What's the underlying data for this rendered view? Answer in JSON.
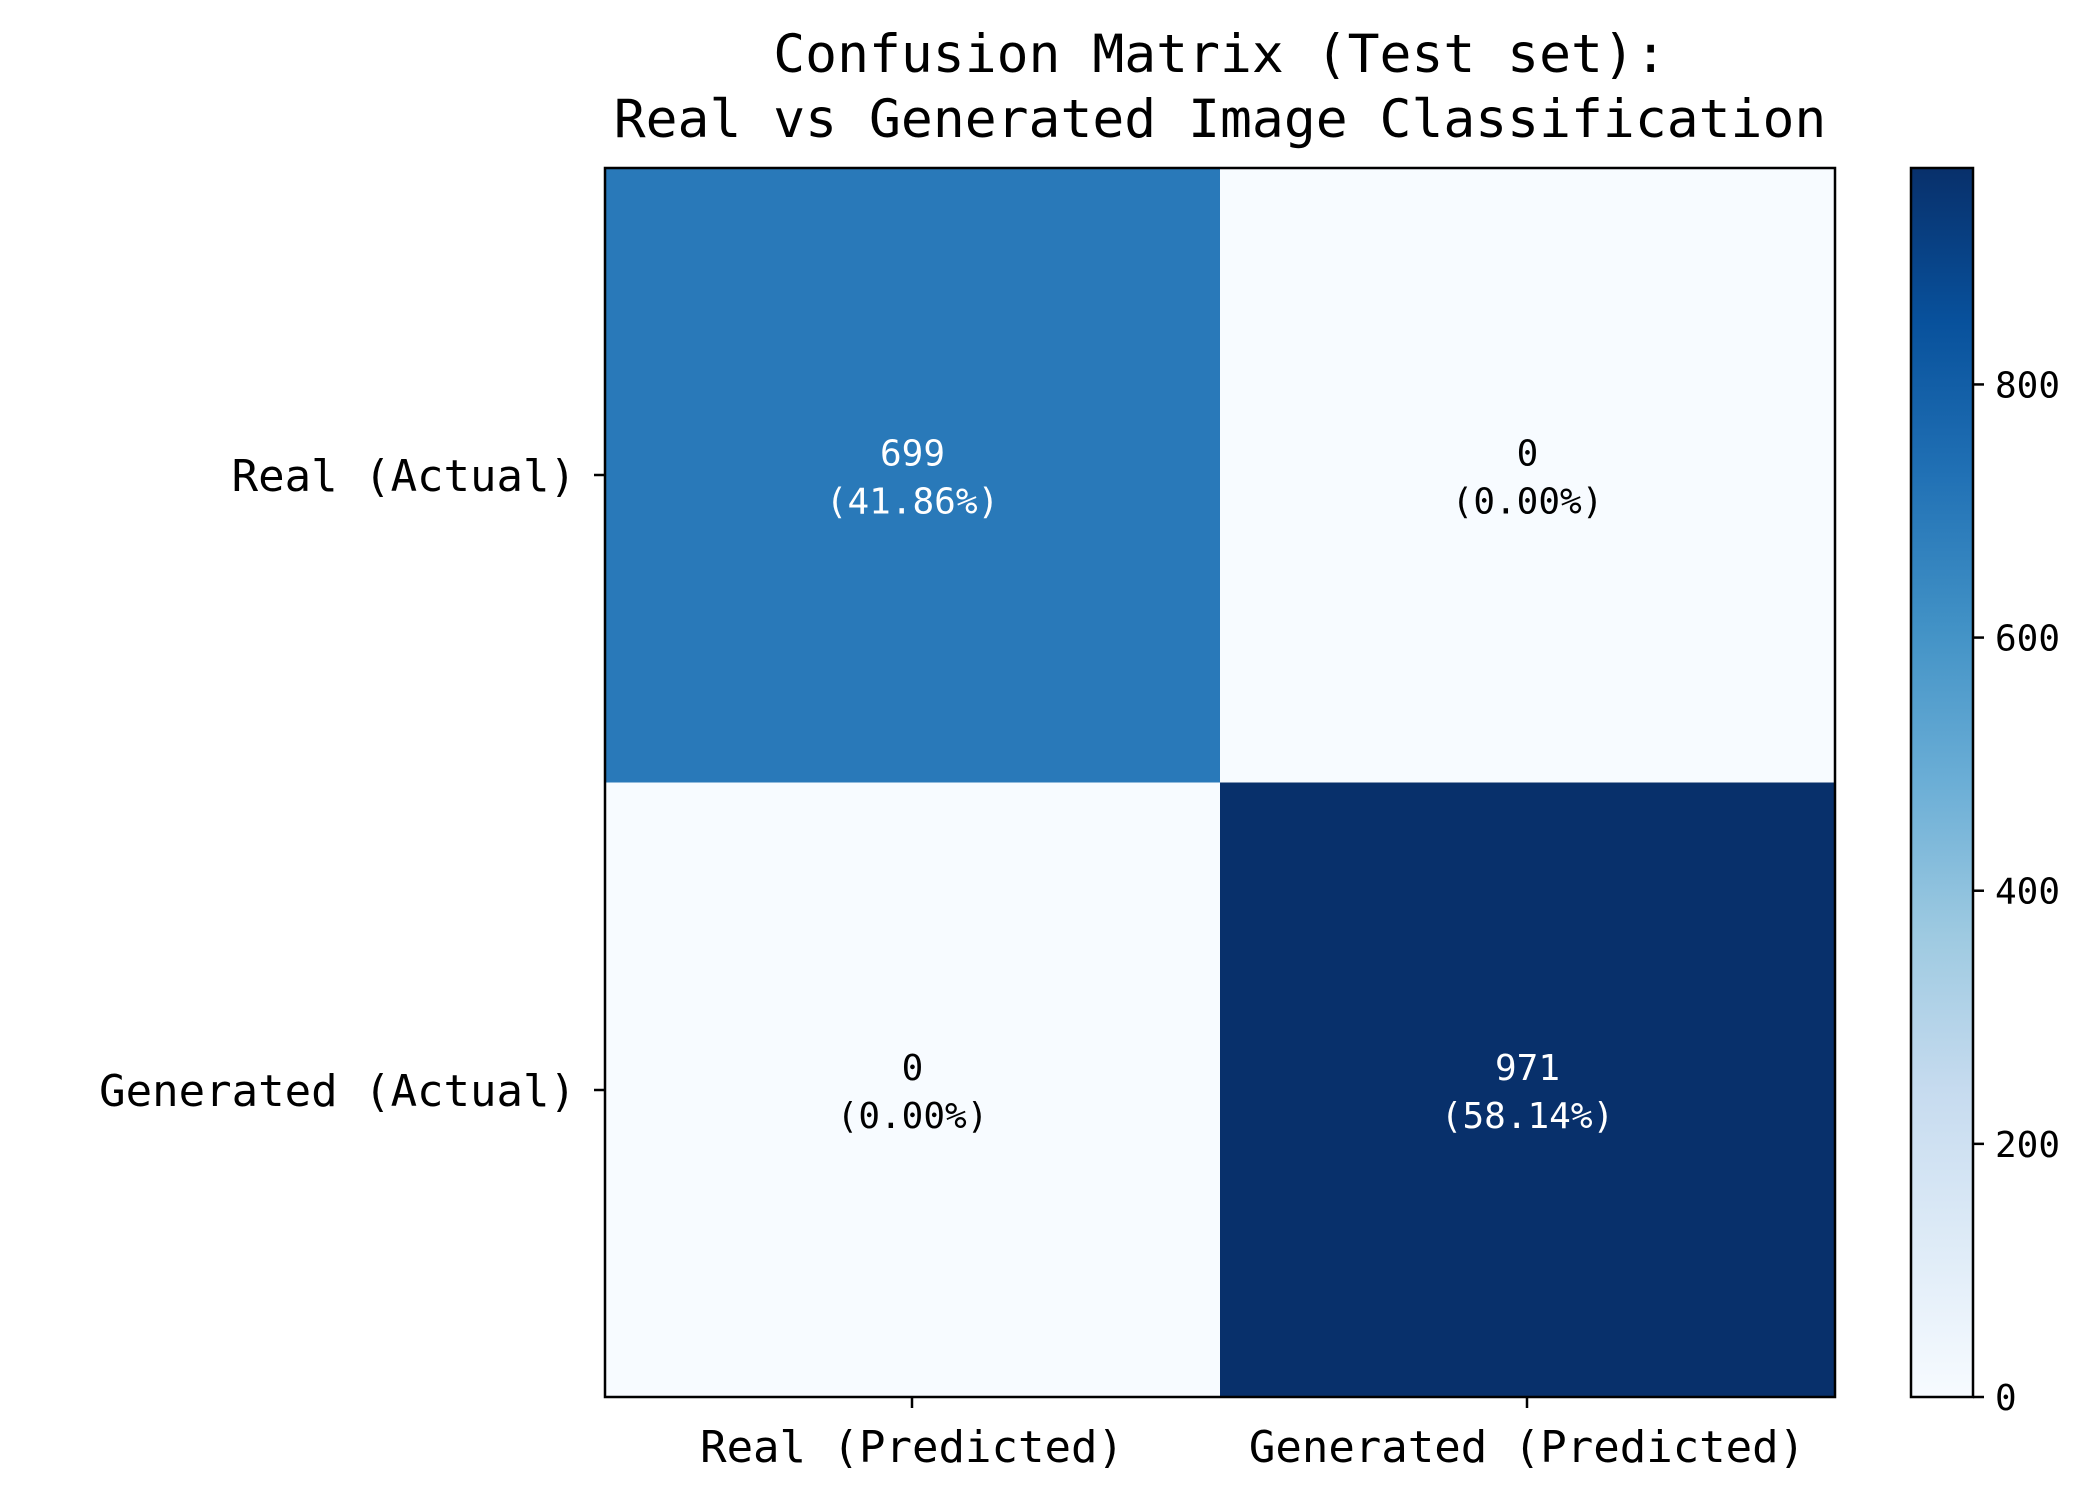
{
  "chart_data": {
    "type": "heatmap",
    "title_lines": [
      "Confusion Matrix (Test set):",
      "Real vs Generated Image Classification"
    ],
    "row_labels": [
      "Real (Actual)",
      "Generated (Actual)"
    ],
    "col_labels": [
      "Real (Predicted)",
      "Generated (Predicted)"
    ],
    "values": [
      [
        699,
        0
      ],
      [
        0,
        971
      ]
    ],
    "percentages": [
      [
        "(41.86%)",
        "(0.00%)"
      ],
      [
        "(0.00%)",
        "(58.14%)"
      ]
    ],
    "colormap": "Blues",
    "colorbar": {
      "range": [
        0,
        971
      ],
      "ticks": [
        0,
        200,
        400,
        600,
        800
      ]
    },
    "grid": false
  },
  "colors": {
    "cmap_light": "#f7fbff",
    "cmap_dark": "#08306b",
    "text_light": "#ffffff",
    "text_dark": "#000000",
    "axis": "#000000"
  }
}
